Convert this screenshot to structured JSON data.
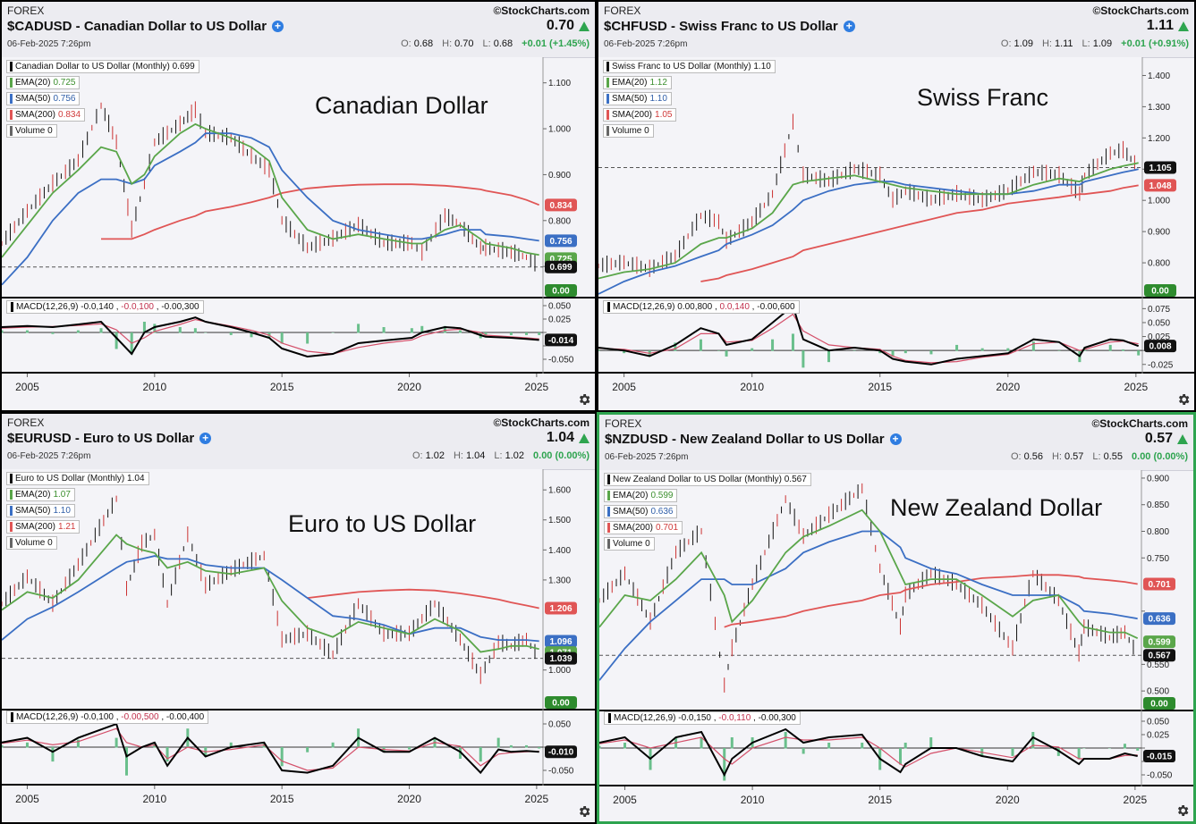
{
  "common": {
    "market": "FOREX",
    "copyright": "©StockCharts.com",
    "date": "06-Feb-2025 7:26pm",
    "x_ticks": [
      "2005",
      "2010",
      "2015",
      "2020",
      "2025"
    ],
    "labels": {
      "open": "O:",
      "high": "H:",
      "low": "L:"
    },
    "volume_legend": "Volume 0"
  },
  "colors": {
    "ema": "#5aa64a",
    "sma50": "#3b6fc4",
    "sma200": "#e05555",
    "price": "#111111",
    "macd": "#000000",
    "signal": "#d4506a",
    "hist": "#6abf8c"
  },
  "panels": [
    {
      "id": "cadusd",
      "title": "$CADUSD - Canadian Dollar to US Dollar",
      "last": "0.70",
      "open": "0.68",
      "high": "0.70",
      "low": "0.68",
      "change": "+0.01 (+1.45%)",
      "overlay": "Canadian Dollar",
      "legend": {
        "price": "Canadian Dollar to US Dollar (Monthly) 0.699",
        "ema_name": "EMA(20)",
        "ema": "0.725",
        "sma50_name": "SMA(50)",
        "sma50": "0.756",
        "sma200_name": "SMA(200)",
        "sma200": "0.834"
      },
      "macd_legend": {
        "name": "MACD(12,26,9)",
        "a": "-0.0,140",
        "b": "-0.0,100",
        "c": "-0.00,300"
      },
      "badges": {
        "sma200": "0.834",
        "sma50": "0.756",
        "ema": "0.725",
        "price": "0.699",
        "volume": "0.00",
        "macd": "-0.014"
      }
    },
    {
      "id": "chfusd",
      "title": "$CHFUSD - Swiss Franc to US Dollar",
      "last": "1.11",
      "open": "1.09",
      "high": "1.11",
      "low": "1.09",
      "change": "+0.01 (+0.91%)",
      "overlay": "Swiss Franc",
      "legend": {
        "price": "Swiss Franc to US Dollar (Monthly) 1.10",
        "ema_name": "EMA(20)",
        "ema": "1.12",
        "sma50_name": "SMA(50)",
        "sma50": "1.10",
        "sma200_name": "SMA(200)",
        "sma200": "1.05"
      },
      "macd_legend": {
        "name": "MACD(12,26,9)",
        "a": "0.00,800",
        "b": "0.0,140",
        "c": "-0.00,600"
      },
      "badges": {
        "sma200": "1.048",
        "sma50": "",
        "ema": "",
        "price": "1.105",
        "volume": "0.00",
        "macd": "0.008"
      }
    },
    {
      "id": "eurusd",
      "title": "$EURUSD - Euro to US Dollar",
      "last": "1.04",
      "open": "1.02",
      "high": "1.04",
      "low": "1.02",
      "change": "0.00 (0.00%)",
      "overlay": "Euro to US Dollar",
      "legend": {
        "price": "Euro to US Dollar (Monthly) 1.04",
        "ema_name": "EMA(20)",
        "ema": "1.07",
        "sma50_name": "SMA(50)",
        "sma50": "1.10",
        "sma200_name": "SMA(200)",
        "sma200": "1.21"
      },
      "macd_legend": {
        "name": "MACD(12,26,9)",
        "a": "-0.0,100",
        "b": "-0.00,500",
        "c": "-0.00,400"
      },
      "badges": {
        "sma200": "1.206",
        "sma50": "1.096",
        "ema": "1.071",
        "price": "1.039",
        "volume": "0.00",
        "macd": "-0.010"
      }
    },
    {
      "id": "nzdusd",
      "title": "$NZDUSD - New Zealand Dollar to US Dollar",
      "last": "0.57",
      "open": "0.56",
      "high": "0.57",
      "low": "0.55",
      "change": "0.00 (0.00%)",
      "overlay": "New Zealand Dollar",
      "legend": {
        "price": "New Zealand Dollar to US Dollar (Monthly) 0.567",
        "ema_name": "EMA(20)",
        "ema": "0.599",
        "sma50_name": "SMA(50)",
        "sma50": "0.636",
        "sma200_name": "SMA(200)",
        "sma200": "0.701"
      },
      "macd_legend": {
        "name": "MACD(12,26,9)",
        "a": "-0.0,150",
        "b": "-0.0,110",
        "c": "-0.00,300"
      },
      "badges": {
        "sma200": "0.701",
        "sma50": "0.636",
        "ema": "0.599",
        "price": "0.567",
        "volume": "0.00",
        "macd": "-0.015"
      }
    }
  ],
  "chart_data": [
    {
      "type": "line",
      "title": "$CADUSD - Canadian Dollar to US Dollar",
      "x": [
        2004,
        2005,
        2006,
        2007,
        2007.9,
        2008.5,
        2009.1,
        2009.6,
        2010,
        2011,
        2011.6,
        2012,
        2013,
        2013.8,
        2014.5,
        2015,
        2016,
        2017,
        2018,
        2019,
        2020.1,
        2020.5,
        2021.4,
        2022,
        2022.8,
        2023,
        2024,
        2024.6,
        2025.1
      ],
      "price": [
        0.75,
        0.82,
        0.88,
        0.93,
        1.05,
        0.97,
        0.78,
        0.88,
        0.97,
        1.01,
        1.04,
        0.99,
        0.98,
        0.94,
        0.91,
        0.8,
        0.74,
        0.76,
        0.79,
        0.75,
        0.75,
        0.73,
        0.81,
        0.79,
        0.74,
        0.74,
        0.73,
        0.72,
        0.7
      ],
      "ema20": [
        0.72,
        0.79,
        0.86,
        0.91,
        0.96,
        0.95,
        0.88,
        0.9,
        0.94,
        0.99,
        1.01,
        1.0,
        0.98,
        0.96,
        0.93,
        0.85,
        0.78,
        0.76,
        0.77,
        0.76,
        0.75,
        0.75,
        0.78,
        0.79,
        0.76,
        0.75,
        0.74,
        0.73,
        0.725
      ],
      "sma50": [
        0.66,
        0.72,
        0.8,
        0.86,
        0.89,
        0.89,
        0.88,
        0.89,
        0.92,
        0.95,
        0.97,
        0.99,
        0.99,
        0.98,
        0.96,
        0.91,
        0.85,
        0.8,
        0.78,
        0.77,
        0.76,
        0.76,
        0.77,
        0.78,
        0.78,
        0.77,
        0.765,
        0.76,
        0.756
      ],
      "sma200": [
        null,
        null,
        null,
        null,
        0.76,
        0.76,
        0.76,
        0.77,
        0.78,
        0.8,
        0.81,
        0.82,
        0.83,
        0.84,
        0.85,
        0.86,
        0.87,
        0.875,
        0.878,
        0.879,
        0.879,
        0.878,
        0.876,
        0.873,
        0.868,
        0.865,
        0.855,
        0.845,
        0.834
      ],
      "macd": [
        0.01,
        0.012,
        0.01,
        0.015,
        0.02,
        -0.01,
        -0.04,
        0.0,
        0.01,
        0.02,
        0.028,
        0.02,
        0.01,
        0.0,
        -0.01,
        -0.03,
        -0.045,
        -0.04,
        -0.02,
        -0.015,
        -0.01,
        0.0,
        0.01,
        0.008,
        -0.005,
        -0.008,
        -0.01,
        -0.012,
        -0.014
      ],
      "signal": [
        0.008,
        0.01,
        0.011,
        0.013,
        0.016,
        0.005,
        -0.02,
        -0.01,
        0.002,
        0.015,
        0.024,
        0.02,
        0.012,
        0.004,
        -0.005,
        -0.02,
        -0.035,
        -0.04,
        -0.028,
        -0.02,
        -0.014,
        -0.006,
        0.004,
        0.006,
        0.0,
        -0.005,
        -0.008,
        -0.01,
        -0.012
      ],
      "ylim": [
        0.64,
        1.15
      ],
      "macd_ylim": [
        -0.07,
        0.06
      ],
      "y_ticks": [
        1.1,
        1.0,
        0.9,
        0.8,
        0.7
      ],
      "y_tick_labels": [
        "1.100",
        "1.000",
        "0.900",
        "0.800",
        "0.700"
      ],
      "macd_ticks": [
        0.05,
        0.025,
        0,
        -0.025,
        -0.05
      ],
      "macd_tick_labels": [
        "0.050",
        "0.025",
        "",
        "",
        "-0.050"
      ],
      "ref": 0.699
    },
    {
      "type": "line",
      "title": "$CHFUSD - Swiss Franc to US Dollar",
      "x": [
        2004,
        2005,
        2006,
        2007,
        2008,
        2008.7,
        2009,
        2010,
        2010.8,
        2011.6,
        2012,
        2013,
        2014,
        2015,
        2015.5,
        2016,
        2017,
        2018,
        2019,
        2020,
        2021,
        2022,
        2022.8,
        2023,
        2024,
        2024.5,
        2025.1
      ],
      "price": [
        0.79,
        0.8,
        0.78,
        0.82,
        0.95,
        0.93,
        0.87,
        0.93,
        1.02,
        1.25,
        1.08,
        1.06,
        1.1,
        1.08,
        1.0,
        1.03,
        1.0,
        1.02,
        1.0,
        1.03,
        1.09,
        1.08,
        1.02,
        1.08,
        1.15,
        1.16,
        1.105
      ],
      "ema20": [
        0.75,
        0.77,
        0.78,
        0.8,
        0.86,
        0.88,
        0.88,
        0.91,
        0.96,
        1.05,
        1.06,
        1.07,
        1.08,
        1.06,
        1.05,
        1.04,
        1.03,
        1.02,
        1.02,
        1.02,
        1.05,
        1.07,
        1.06,
        1.07,
        1.1,
        1.11,
        1.12
      ],
      "sma50": [
        0.7,
        0.74,
        0.77,
        0.79,
        0.82,
        0.84,
        0.86,
        0.89,
        0.92,
        0.97,
        1.0,
        1.03,
        1.05,
        1.06,
        1.06,
        1.05,
        1.04,
        1.03,
        1.02,
        1.02,
        1.03,
        1.05,
        1.05,
        1.06,
        1.08,
        1.09,
        1.1
      ],
      "sma200": [
        null,
        null,
        null,
        null,
        0.74,
        0.75,
        0.76,
        0.78,
        0.8,
        0.82,
        0.84,
        0.86,
        0.88,
        0.9,
        0.91,
        0.92,
        0.94,
        0.96,
        0.97,
        0.99,
        1.0,
        1.01,
        1.02,
        1.02,
        1.03,
        1.04,
        1.048
      ],
      "macd": [
        0.005,
        0.0,
        -0.01,
        0.01,
        0.04,
        0.03,
        0.01,
        0.02,
        0.05,
        0.08,
        0.02,
        0.0,
        0.005,
        0.0,
        -0.015,
        -0.02,
        -0.025,
        -0.015,
        -0.01,
        -0.005,
        0.02,
        0.015,
        -0.01,
        0.005,
        0.02,
        0.018,
        0.008
      ],
      "signal": [
        0.004,
        0.002,
        -0.005,
        0.003,
        0.03,
        0.03,
        0.015,
        0.018,
        0.04,
        0.065,
        0.035,
        0.01,
        0.005,
        0.002,
        -0.01,
        -0.018,
        -0.022,
        -0.02,
        -0.012,
        -0.007,
        0.012,
        0.015,
        0.0,
        0.002,
        0.015,
        0.017,
        0.012
      ],
      "ylim": [
        0.7,
        1.45
      ],
      "macd_ylim": [
        -0.035,
        0.09
      ],
      "y_ticks": [
        1.4,
        1.3,
        1.2,
        1.1,
        1.0,
        0.9,
        0.8
      ],
      "y_tick_labels": [
        "1.400",
        "1.300",
        "1.200",
        "",
        "1.000",
        "0.900",
        "0.800"
      ],
      "macd_ticks": [
        0.075,
        0.05,
        0.025,
        0,
        -0.025
      ],
      "macd_tick_labels": [
        "0.075",
        "0.050",
        "0.025",
        "",
        "-0.025"
      ],
      "ref": 1.105
    },
    {
      "type": "line",
      "title": "$EURUSD - Euro to US Dollar",
      "x": [
        2004,
        2005,
        2006,
        2007,
        2008.5,
        2008.9,
        2009.5,
        2010,
        2010.5,
        2011.3,
        2012,
        2013,
        2014.3,
        2015,
        2016,
        2017,
        2018,
        2019,
        2020,
        2021,
        2022,
        2022.8,
        2023.5,
        2024,
        2024.6,
        2025.1
      ],
      "price": [
        1.22,
        1.31,
        1.22,
        1.35,
        1.57,
        1.27,
        1.42,
        1.45,
        1.22,
        1.45,
        1.28,
        1.33,
        1.38,
        1.1,
        1.12,
        1.05,
        1.22,
        1.12,
        1.12,
        1.22,
        1.1,
        0.98,
        1.09,
        1.08,
        1.1,
        1.04
      ],
      "ema20": [
        1.2,
        1.26,
        1.24,
        1.3,
        1.45,
        1.42,
        1.4,
        1.39,
        1.34,
        1.36,
        1.33,
        1.32,
        1.34,
        1.23,
        1.14,
        1.11,
        1.16,
        1.14,
        1.12,
        1.17,
        1.13,
        1.06,
        1.07,
        1.08,
        1.08,
        1.07
      ],
      "sma50": [
        1.1,
        1.17,
        1.21,
        1.26,
        1.34,
        1.36,
        1.37,
        1.38,
        1.37,
        1.37,
        1.35,
        1.34,
        1.34,
        1.3,
        1.24,
        1.18,
        1.17,
        1.15,
        1.12,
        1.14,
        1.14,
        1.11,
        1.1,
        1.1,
        1.1,
        1.096
      ],
      "sma200": [
        null,
        null,
        null,
        null,
        null,
        null,
        null,
        null,
        null,
        null,
        null,
        null,
        null,
        null,
        1.24,
        1.25,
        1.26,
        1.265,
        1.268,
        1.265,
        1.255,
        1.245,
        1.235,
        1.225,
        1.215,
        1.206
      ],
      "macd": [
        0.01,
        0.02,
        -0.01,
        0.02,
        0.05,
        -0.02,
        0.0,
        0.01,
        -0.04,
        0.02,
        -0.02,
        0.0,
        0.01,
        -0.05,
        -0.055,
        -0.04,
        0.02,
        -0.01,
        -0.01,
        0.02,
        -0.01,
        -0.055,
        -0.005,
        -0.01,
        -0.008,
        -0.01
      ],
      "signal": [
        0.008,
        0.015,
        0.005,
        0.012,
        0.04,
        0.01,
        0.0,
        0.005,
        -0.025,
        0.0,
        -0.01,
        -0.005,
        0.005,
        -0.03,
        -0.05,
        -0.045,
        0.0,
        -0.005,
        -0.008,
        0.01,
        0.002,
        -0.04,
        -0.015,
        -0.012,
        -0.01,
        -0.009
      ],
      "ylim": [
        0.88,
        1.66
      ],
      "macd_ylim": [
        -0.075,
        0.075
      ],
      "y_ticks": [
        1.6,
        1.5,
        1.4,
        1.3,
        1.0
      ],
      "y_tick_labels": [
        "1.600",
        "1.500",
        "1.400",
        "1.300",
        "1.000"
      ],
      "macd_ticks": [
        0.05,
        0,
        -0.05
      ],
      "macd_tick_labels": [
        "0.050",
        "",
        "-0.050"
      ],
      "ref": 1.039
    },
    {
      "type": "line",
      "title": "$NZDUSD - New Zealand Dollar to US Dollar",
      "x": [
        2004,
        2005,
        2006,
        2007,
        2008,
        2008.9,
        2009.2,
        2010,
        2011.3,
        2012,
        2013,
        2014.3,
        2015,
        2015.8,
        2016,
        2017,
        2018,
        2019,
        2020.2,
        2021,
        2022,
        2022.8,
        2023,
        2024,
        2024.6,
        2025.1
      ],
      "price": [
        0.67,
        0.72,
        0.63,
        0.76,
        0.8,
        0.51,
        0.58,
        0.7,
        0.86,
        0.79,
        0.83,
        0.88,
        0.73,
        0.62,
        0.68,
        0.72,
        0.7,
        0.66,
        0.58,
        0.72,
        0.67,
        0.57,
        0.62,
        0.6,
        0.61,
        0.567
      ],
      "ema20": [
        0.62,
        0.68,
        0.67,
        0.71,
        0.76,
        0.68,
        0.63,
        0.67,
        0.76,
        0.79,
        0.81,
        0.84,
        0.8,
        0.72,
        0.7,
        0.71,
        0.71,
        0.68,
        0.64,
        0.67,
        0.68,
        0.63,
        0.62,
        0.61,
        0.61,
        0.599
      ],
      "sma50": [
        0.52,
        0.58,
        0.63,
        0.67,
        0.71,
        0.71,
        0.7,
        0.7,
        0.73,
        0.76,
        0.78,
        0.8,
        0.8,
        0.77,
        0.75,
        0.73,
        0.72,
        0.7,
        0.68,
        0.68,
        0.68,
        0.66,
        0.65,
        0.645,
        0.64,
        0.636
      ],
      "sma200": [
        null,
        null,
        null,
        null,
        null,
        0.62,
        0.625,
        0.63,
        0.64,
        0.65,
        0.66,
        0.67,
        0.68,
        0.685,
        0.69,
        0.7,
        0.705,
        0.712,
        0.715,
        0.718,
        0.718,
        0.715,
        0.712,
        0.708,
        0.705,
        0.701
      ],
      "macd": [
        0.01,
        0.02,
        -0.02,
        0.02,
        0.03,
        -0.05,
        -0.02,
        0.01,
        0.035,
        0.01,
        0.02,
        0.025,
        -0.02,
        -0.045,
        -0.03,
        0.0,
        0.0,
        -0.015,
        -0.025,
        0.02,
        -0.005,
        -0.03,
        -0.02,
        -0.02,
        -0.01,
        -0.015
      ],
      "signal": [
        0.008,
        0.015,
        0.0,
        0.01,
        0.02,
        -0.02,
        -0.03,
        0.0,
        0.02,
        0.015,
        0.015,
        0.02,
        0.0,
        -0.03,
        -0.035,
        -0.01,
        0.0,
        -0.008,
        -0.018,
        0.005,
        0.002,
        -0.02,
        -0.02,
        -0.02,
        -0.014,
        -0.013
      ],
      "ylim": [
        0.47,
        0.91
      ],
      "macd_ylim": [
        -0.065,
        0.065
      ],
      "y_ticks": [
        0.9,
        0.85,
        0.8,
        0.75,
        0.65,
        0.55,
        0.5
      ],
      "y_tick_labels": [
        "0.900",
        "0.850",
        "0.800",
        "0.750",
        "",
        "0.550",
        "0.500"
      ],
      "macd_ticks": [
        0.05,
        0.025,
        0,
        -0.025,
        -0.05
      ],
      "macd_tick_labels": [
        "0.050",
        "0.025",
        "",
        "",
        "-0.050"
      ],
      "ref": 0.567
    }
  ]
}
